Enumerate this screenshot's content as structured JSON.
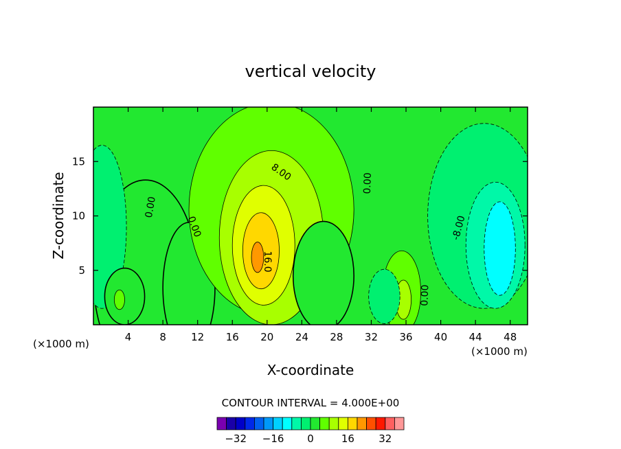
{
  "chart_data": {
    "type": "contour",
    "title": "vertical velocity",
    "xlabel": "X-coordinate",
    "ylabel": "Z-coordinate",
    "x_unit_label": "(×1000 m)",
    "xlim": [
      0,
      50
    ],
    "ylim": [
      0,
      20
    ],
    "xticks": [
      4,
      8,
      12,
      16,
      20,
      24,
      28,
      32,
      36,
      40,
      44,
      48
    ],
    "yticks": [
      5,
      10,
      15
    ],
    "contour_interval_label": "CONTOUR INTERVAL = 4.000E+00",
    "contour_labels": [
      {
        "text": "0.00",
        "x": 6.6,
        "y": 10.8,
        "rot": -80
      },
      {
        "text": "0.00",
        "x": 11.6,
        "y": 9.0,
        "rot": 70
      },
      {
        "text": "8.00",
        "x": 21.6,
        "y": 14.0,
        "rot": 35
      },
      {
        "text": "16.0",
        "x": 20.0,
        "y": 5.8,
        "rot": 90
      },
      {
        "text": "0.00",
        "x": 31.6,
        "y": 13.0,
        "rot": -88
      },
      {
        "text": "0.00",
        "x": 38.2,
        "y": 2.7,
        "rot": -88
      },
      {
        "text": "-8.00",
        "x": 42.1,
        "y": 8.9,
        "rot": -75
      }
    ],
    "blobs": [
      {
        "level": 0,
        "x": 6,
        "y": 4.3,
        "rx": 6,
        "ry": 9
      },
      {
        "level": 0,
        "x": 11,
        "y": 3.4,
        "rx": 3,
        "ry": 6
      },
      {
        "level": 4,
        "x": 20.5,
        "y": 10.6,
        "rx": 9.5,
        "ry": 9.8
      },
      {
        "level": 8,
        "x": 20.5,
        "y": 8.0,
        "rx": 6,
        "ry": 8
      },
      {
        "level": 12,
        "x": 19.6,
        "y": 7.3,
        "rx": 3.6,
        "ry": 5.5
      },
      {
        "level": 16,
        "x": 19.3,
        "y": 6.8,
        "rx": 2.1,
        "ry": 3.5
      },
      {
        "level": 20,
        "x": 18.9,
        "y": 6.2,
        "rx": 0.7,
        "ry": 1.4
      },
      {
        "level": 0,
        "x": 26.5,
        "y": 4.5,
        "rx": 3.5,
        "ry": 5
      },
      {
        "level": 4,
        "x": 35.5,
        "y": 3.0,
        "rx": 2.2,
        "ry": 3.8
      },
      {
        "level": 8,
        "x": 35.7,
        "y": 2.3,
        "rx": 0.9,
        "ry": 1.8
      },
      {
        "level": -4,
        "x": 45,
        "y": 10.0,
        "rx": 6.5,
        "ry": 8.5
      },
      {
        "level": -8,
        "x": 46.3,
        "y": 7.3,
        "rx": 3.4,
        "ry": 5.8
      },
      {
        "level": -12,
        "x": 46.8,
        "y": 7.0,
        "rx": 1.8,
        "ry": 4.3
      },
      {
        "level": -4,
        "x": 1,
        "y": 9.0,
        "rx": 2.8,
        "ry": 7.5
      },
      {
        "level": -4,
        "x": 33.5,
        "y": 2.6,
        "rx": 1.8,
        "ry": 2.5
      },
      {
        "level": 0,
        "x": 3.6,
        "y": 2.6,
        "rx": 2.3,
        "ry": 2.6
      },
      {
        "level": 4,
        "x": 3.0,
        "y": 2.3,
        "rx": 0.6,
        "ry": 0.9
      }
    ],
    "colorbar": {
      "levels": [
        -36,
        -32,
        -28,
        -24,
        -20,
        -16,
        -12,
        -8,
        -4,
        0,
        4,
        8,
        12,
        16,
        20,
        24,
        28,
        32,
        36
      ],
      "colors": [
        "#7a00b0",
        "#1a00a8",
        "#0000c8",
        "#0028e8",
        "#0060f0",
        "#0098f8",
        "#00d0ff",
        "#00ffff",
        "#00f8a8",
        "#00f070",
        "#22e830",
        "#60ff00",
        "#a8ff00",
        "#e0ff00",
        "#ffd800",
        "#ff9800",
        "#ff5000",
        "#ff1800",
        "#ff6060",
        "#ff9898"
      ],
      "tick_labels": [
        "−32",
        "−16",
        "0",
        "16",
        "32"
      ],
      "tick_values": [
        -32,
        -16,
        0,
        16,
        32
      ]
    }
  }
}
